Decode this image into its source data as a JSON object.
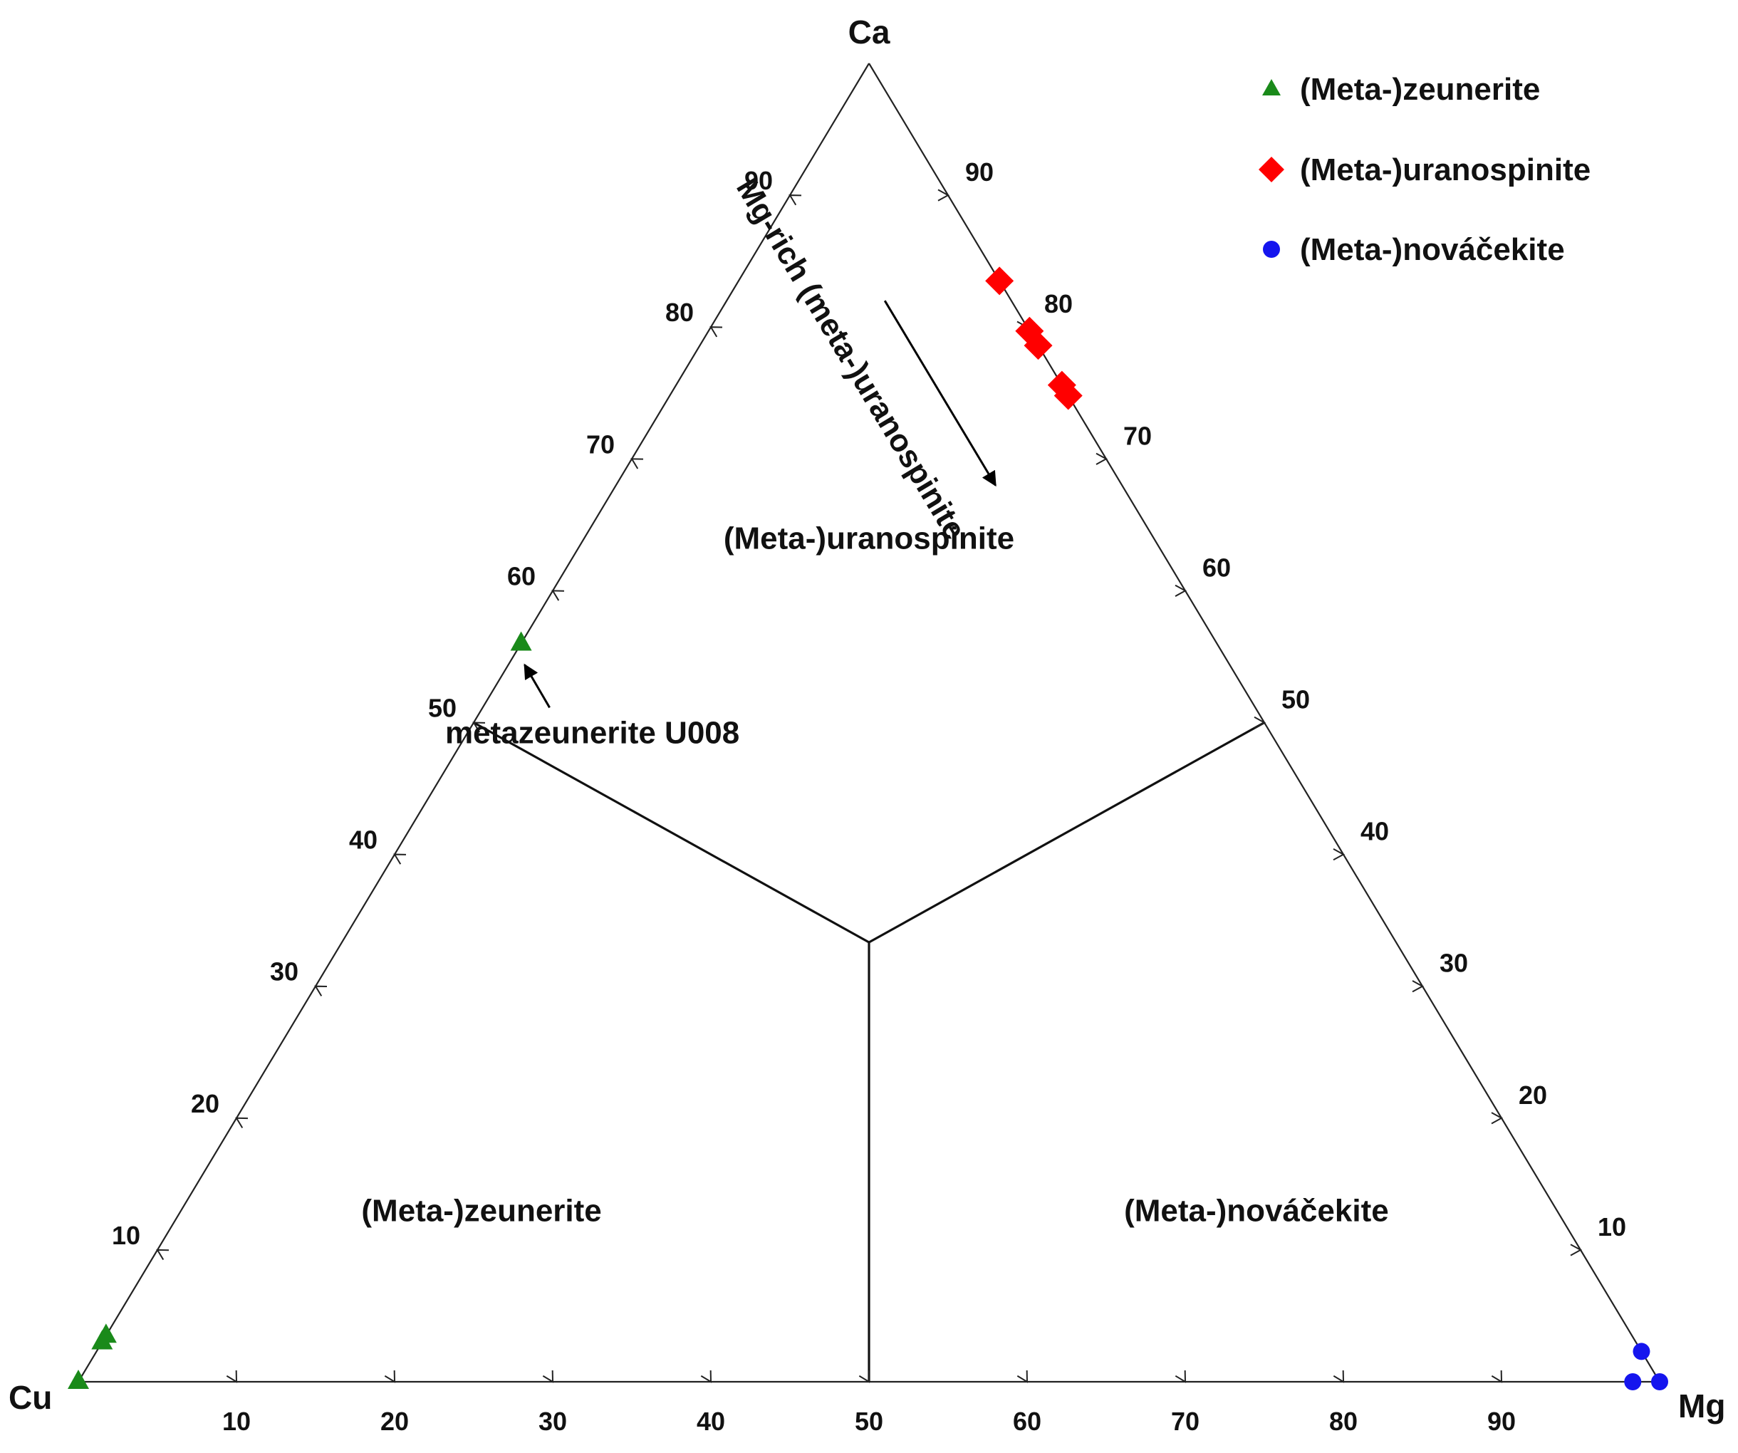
{
  "chart_data": {
    "type": "scatter",
    "subtype": "ternary",
    "vertices": {
      "top": "Ca",
      "left": "Cu",
      "right": "Mg"
    },
    "axis_ticks": [
      10,
      20,
      30,
      40,
      50,
      60,
      70,
      80,
      90
    ],
    "tick_labels": [
      "10",
      "20",
      "30",
      "40",
      "50",
      "60",
      "70",
      "80",
      "90"
    ],
    "grid": false,
    "legend_position": "top-right",
    "region_boundaries": {
      "center": {
        "Ca": 33.3,
        "Cu": 33.3,
        "Mg": 33.3
      },
      "ends": [
        {
          "Ca": 50,
          "Cu": 50,
          "Mg": 0
        },
        {
          "Ca": 50,
          "Cu": 0,
          "Mg": 50
        },
        {
          "Ca": 0,
          "Cu": 50,
          "Mg": 50
        }
      ]
    },
    "regions": [
      {
        "label": "(Meta-)uranospinite",
        "dominant": "Ca"
      },
      {
        "label": "(Meta-)zeunerite",
        "dominant": "Cu"
      },
      {
        "label": "(Meta-)nováčekite",
        "dominant": "Mg"
      }
    ],
    "series": [
      {
        "name": "(Meta-)zeunerite",
        "color": "#1a8a1a",
        "marker": "triangle",
        "points": [
          {
            "Ca": 0,
            "Cu": 100,
            "Mg": 0
          },
          {
            "Ca": 3,
            "Cu": 97,
            "Mg": 0
          },
          {
            "Ca": 3.5,
            "Cu": 96.5,
            "Mg": 0
          },
          {
            "Ca": 56,
            "Cu": 44,
            "Mg": 0
          }
        ]
      },
      {
        "name": "(Meta-)uranospinite",
        "color": "#ff0000",
        "marker": "diamond",
        "points": [
          {
            "Ca": 83.5,
            "Cu": 0,
            "Mg": 16.5
          },
          {
            "Ca": 79.7,
            "Cu": 0,
            "Mg": 20.3
          },
          {
            "Ca": 78.6,
            "Cu": 0,
            "Mg": 21.4
          },
          {
            "Ca": 75.6,
            "Cu": 0,
            "Mg": 24.4
          },
          {
            "Ca": 74.8,
            "Cu": 0,
            "Mg": 25.2
          }
        ]
      },
      {
        "name": "(Meta-)nováčekite",
        "color": "#1515ee",
        "marker": "circle",
        "points": [
          {
            "Ca": 2.3,
            "Cu": 0,
            "Mg": 97.7
          },
          {
            "Ca": 0,
            "Cu": 1.7,
            "Mg": 98.3
          },
          {
            "Ca": 0,
            "Cu": 0,
            "Mg": 100
          }
        ]
      }
    ],
    "annotations": [
      {
        "text": "metazeunerite U008",
        "points_to_series": "(Meta-)zeunerite"
      },
      {
        "text": "Mg-rich (meta-)uranospinite"
      }
    ]
  }
}
